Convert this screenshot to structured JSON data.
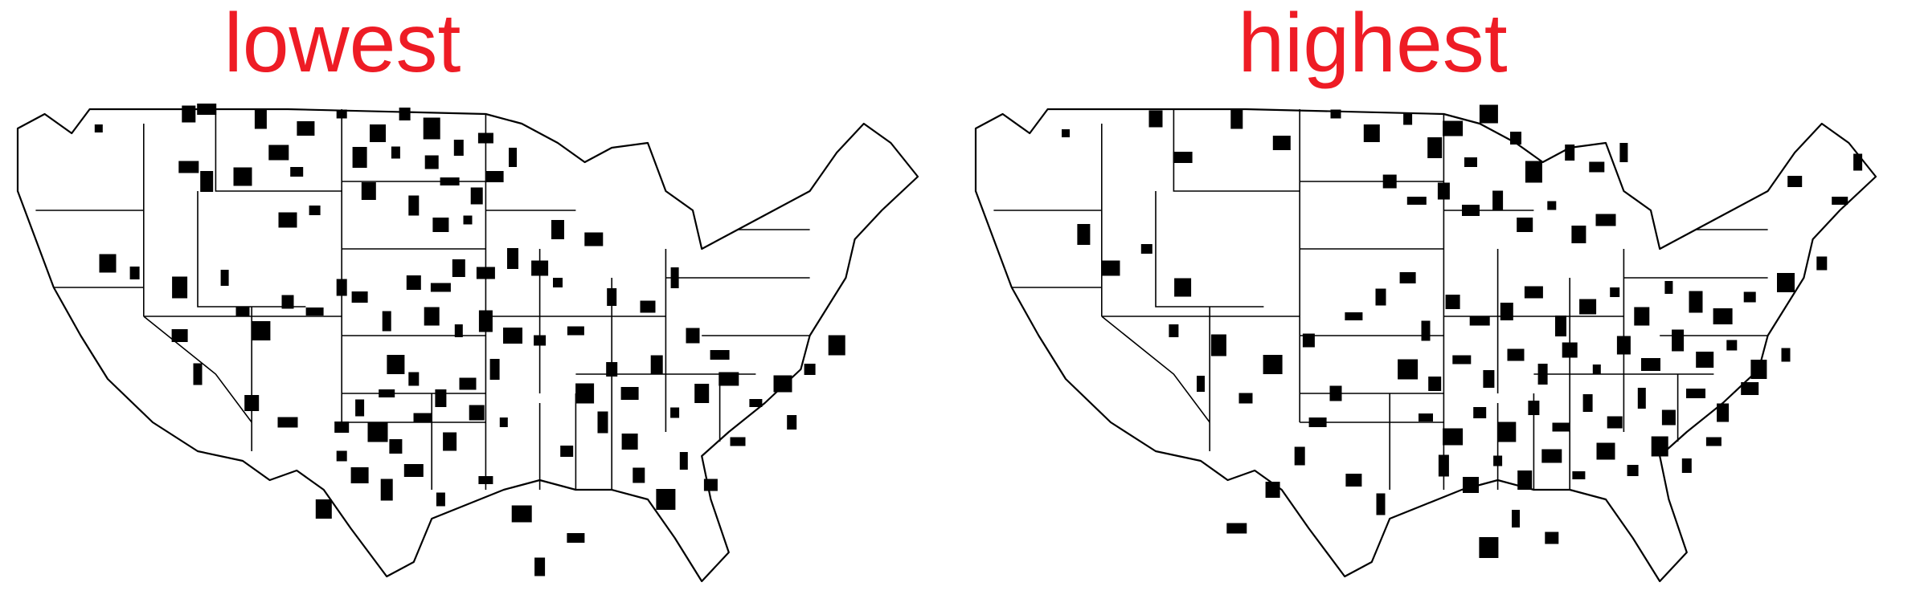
{
  "colors": {
    "title": "#ee1c25",
    "county_fill": "#000000",
    "state_border": "#000000",
    "background": "#ffffff"
  },
  "panels": [
    {
      "id": "left",
      "title": "lowest",
      "counties": [
        [
          0.09,
          0.05
        ],
        [
          0.19,
          0.02
        ],
        [
          0.21,
          0.01
        ],
        [
          0.27,
          0.03
        ],
        [
          0.32,
          0.05
        ],
        [
          0.36,
          0.02
        ],
        [
          0.4,
          0.06
        ],
        [
          0.42,
          0.1
        ],
        [
          0.38,
          0.11
        ],
        [
          0.29,
          0.1
        ],
        [
          0.31,
          0.14
        ],
        [
          0.25,
          0.15
        ],
        [
          0.43,
          0.02
        ],
        [
          0.46,
          0.05
        ],
        [
          0.49,
          0.09
        ],
        [
          0.52,
          0.07
        ],
        [
          0.55,
          0.11
        ],
        [
          0.46,
          0.12
        ],
        [
          0.48,
          0.16
        ],
        [
          0.51,
          0.19
        ],
        [
          0.53,
          0.15
        ],
        [
          0.44,
          0.21
        ],
        [
          0.47,
          0.25
        ],
        [
          0.5,
          0.24
        ],
        [
          0.39,
          0.18
        ],
        [
          0.19,
          0.13
        ],
        [
          0.21,
          0.16
        ],
        [
          0.3,
          0.24
        ],
        [
          0.33,
          0.22
        ],
        [
          0.1,
          0.33
        ],
        [
          0.13,
          0.35
        ],
        [
          0.18,
          0.38
        ],
        [
          0.23,
          0.36
        ],
        [
          0.25,
          0.43
        ],
        [
          0.27,
          0.47
        ],
        [
          0.3,
          0.41
        ],
        [
          0.33,
          0.43
        ],
        [
          0.36,
          0.38
        ],
        [
          0.38,
          0.4
        ],
        [
          0.41,
          0.45
        ],
        [
          0.44,
          0.37
        ],
        [
          0.47,
          0.38
        ],
        [
          0.49,
          0.34
        ],
        [
          0.52,
          0.35
        ],
        [
          0.55,
          0.32
        ],
        [
          0.58,
          0.34
        ],
        [
          0.6,
          0.37
        ],
        [
          0.46,
          0.44
        ],
        [
          0.49,
          0.47
        ],
        [
          0.52,
          0.45
        ],
        [
          0.55,
          0.48
        ],
        [
          0.58,
          0.49
        ],
        [
          0.42,
          0.54
        ],
        [
          0.44,
          0.57
        ],
        [
          0.41,
          0.6
        ],
        [
          0.38,
          0.63
        ],
        [
          0.36,
          0.67
        ],
        [
          0.4,
          0.68
        ],
        [
          0.42,
          0.71
        ],
        [
          0.45,
          0.65
        ],
        [
          0.47,
          0.61
        ],
        [
          0.5,
          0.58
        ],
        [
          0.53,
          0.55
        ],
        [
          0.51,
          0.64
        ],
        [
          0.54,
          0.66
        ],
        [
          0.48,
          0.7
        ],
        [
          0.44,
          0.76
        ],
        [
          0.41,
          0.8
        ],
        [
          0.38,
          0.77
        ],
        [
          0.36,
          0.73
        ],
        [
          0.34,
          0.84
        ],
        [
          0.47,
          0.82
        ],
        [
          0.52,
          0.78
        ],
        [
          0.56,
          0.85
        ],
        [
          0.61,
          0.72
        ],
        [
          0.63,
          0.6
        ],
        [
          0.66,
          0.55
        ],
        [
          0.62,
          0.47
        ],
        [
          0.66,
          0.4
        ],
        [
          0.7,
          0.42
        ],
        [
          0.73,
          0.36
        ],
        [
          0.75,
          0.48
        ],
        [
          0.78,
          0.52
        ],
        [
          0.71,
          0.54
        ],
        [
          0.68,
          0.6
        ],
        [
          0.65,
          0.66
        ],
        [
          0.68,
          0.7
        ],
        [
          0.73,
          0.64
        ],
        [
          0.76,
          0.6
        ],
        [
          0.79,
          0.57
        ],
        [
          0.82,
          0.62
        ],
        [
          0.85,
          0.58
        ],
        [
          0.88,
          0.55
        ],
        [
          0.91,
          0.5
        ],
        [
          0.86,
          0.66
        ],
        [
          0.8,
          0.7
        ],
        [
          0.74,
          0.74
        ],
        [
          0.77,
          0.79
        ],
        [
          0.72,
          0.82
        ],
        [
          0.69,
          0.77
        ],
        [
          0.62,
          0.9
        ],
        [
          0.58,
          0.96
        ],
        [
          0.18,
          0.48
        ],
        [
          0.2,
          0.56
        ],
        [
          0.26,
          0.62
        ],
        [
          0.3,
          0.66
        ],
        [
          0.6,
          0.26
        ],
        [
          0.64,
          0.28
        ]
      ]
    },
    {
      "id": "right",
      "title": "highest",
      "counties": [
        [
          0.1,
          0.06
        ],
        [
          0.2,
          0.03
        ],
        [
          0.23,
          0.11
        ],
        [
          0.29,
          0.03
        ],
        [
          0.34,
          0.08
        ],
        [
          0.4,
          0.02
        ],
        [
          0.44,
          0.06
        ],
        [
          0.48,
          0.03
        ],
        [
          0.51,
          0.09
        ],
        [
          0.53,
          0.05
        ],
        [
          0.55,
          0.12
        ],
        [
          0.57,
          0.02
        ],
        [
          0.6,
          0.07
        ],
        [
          0.62,
          0.14
        ],
        [
          0.66,
          0.1
        ],
        [
          0.69,
          0.13
        ],
        [
          0.72,
          0.1
        ],
        [
          0.46,
          0.16
        ],
        [
          0.49,
          0.2
        ],
        [
          0.52,
          0.18
        ],
        [
          0.55,
          0.22
        ],
        [
          0.58,
          0.2
        ],
        [
          0.61,
          0.25
        ],
        [
          0.64,
          0.21
        ],
        [
          0.67,
          0.27
        ],
        [
          0.7,
          0.24
        ],
        [
          0.12,
          0.27
        ],
        [
          0.15,
          0.34
        ],
        [
          0.19,
          0.3
        ],
        [
          0.23,
          0.38
        ],
        [
          0.22,
          0.47
        ],
        [
          0.27,
          0.5
        ],
        [
          0.25,
          0.58
        ],
        [
          0.3,
          0.61
        ],
        [
          0.33,
          0.54
        ],
        [
          0.37,
          0.49
        ],
        [
          0.42,
          0.44
        ],
        [
          0.45,
          0.4
        ],
        [
          0.48,
          0.36
        ],
        [
          0.5,
          0.47
        ],
        [
          0.53,
          0.41
        ],
        [
          0.56,
          0.45
        ],
        [
          0.59,
          0.43
        ],
        [
          0.62,
          0.39
        ],
        [
          0.65,
          0.46
        ],
        [
          0.68,
          0.42
        ],
        [
          0.71,
          0.39
        ],
        [
          0.74,
          0.44
        ],
        [
          0.77,
          0.38
        ],
        [
          0.8,
          0.41
        ],
        [
          0.83,
          0.44
        ],
        [
          0.86,
          0.4
        ],
        [
          0.9,
          0.37
        ],
        [
          0.94,
          0.33
        ],
        [
          0.96,
          0.2
        ],
        [
          0.98,
          0.12
        ],
        [
          0.91,
          0.16
        ],
        [
          0.48,
          0.55
        ],
        [
          0.51,
          0.58
        ],
        [
          0.54,
          0.53
        ],
        [
          0.57,
          0.57
        ],
        [
          0.6,
          0.52
        ],
        [
          0.63,
          0.56
        ],
        [
          0.66,
          0.51
        ],
        [
          0.69,
          0.55
        ],
        [
          0.72,
          0.5
        ],
        [
          0.75,
          0.54
        ],
        [
          0.78,
          0.49
        ],
        [
          0.81,
          0.53
        ],
        [
          0.84,
          0.5
        ],
        [
          0.87,
          0.55
        ],
        [
          0.9,
          0.52
        ],
        [
          0.5,
          0.65
        ],
        [
          0.53,
          0.69
        ],
        [
          0.56,
          0.64
        ],
        [
          0.59,
          0.68
        ],
        [
          0.62,
          0.63
        ],
        [
          0.65,
          0.67
        ],
        [
          0.68,
          0.62
        ],
        [
          0.71,
          0.66
        ],
        [
          0.74,
          0.61
        ],
        [
          0.77,
          0.65
        ],
        [
          0.8,
          0.6
        ],
        [
          0.83,
          0.64
        ],
        [
          0.86,
          0.59
        ],
        [
          0.52,
          0.75
        ],
        [
          0.55,
          0.79
        ],
        [
          0.58,
          0.74
        ],
        [
          0.61,
          0.78
        ],
        [
          0.64,
          0.73
        ],
        [
          0.67,
          0.77
        ],
        [
          0.7,
          0.72
        ],
        [
          0.73,
          0.76
        ],
        [
          0.76,
          0.71
        ],
        [
          0.79,
          0.75
        ],
        [
          0.82,
          0.7
        ],
        [
          0.6,
          0.86
        ],
        [
          0.64,
          0.9
        ],
        [
          0.57,
          0.92
        ],
        [
          0.4,
          0.6
        ],
        [
          0.38,
          0.66
        ],
        [
          0.36,
          0.73
        ],
        [
          0.42,
          0.78
        ],
        [
          0.45,
          0.83
        ],
        [
          0.33,
          0.8
        ],
        [
          0.29,
          0.88
        ]
      ]
    }
  ]
}
